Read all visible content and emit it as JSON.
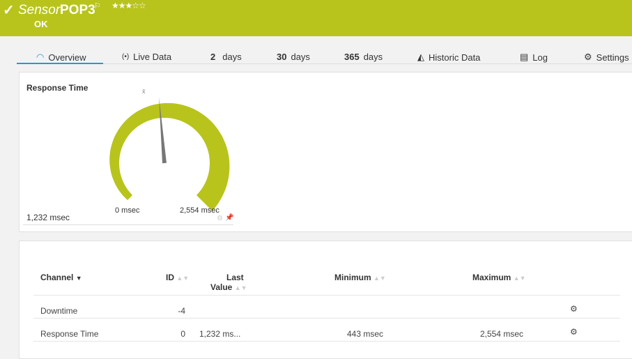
{
  "header": {
    "prefix": "Sensor",
    "name": "POP3",
    "status": "OK",
    "rating": 3,
    "rating_max": 5,
    "icon": "check-icon",
    "flag_icon": "flag-icon",
    "color": "#b8c41c"
  },
  "tabs": [
    {
      "label": "Overview",
      "icon": "gauge-icon",
      "active": true
    },
    {
      "label": "Live Data",
      "icon": "broadcast-icon"
    },
    {
      "num": "2",
      "label": "days"
    },
    {
      "num": "30",
      "label": "days"
    },
    {
      "num": "365",
      "label": "days"
    },
    {
      "label": "Historic Data",
      "icon": "area-chart-icon"
    },
    {
      "label": "Log",
      "icon": "log-icon"
    },
    {
      "label": "Settings",
      "icon": "gear-icon"
    }
  ],
  "gauge": {
    "title": "Response Time",
    "value_label": "1,232 msec",
    "min_label": "0 msec",
    "max_label": "2,554 msec",
    "value": 1232,
    "min": 0,
    "max": 2554,
    "avg_marker": "x̄",
    "color": "#b8c41c"
  },
  "table": {
    "headers": {
      "channel": "Channel",
      "id": "ID",
      "last_1": "Last",
      "last_2": "Value",
      "minimum": "Minimum",
      "maximum": "Maximum"
    },
    "rows": [
      {
        "channel": "Downtime",
        "id": "-4",
        "last": "",
        "minimum": "",
        "maximum": ""
      },
      {
        "channel": "Response Time",
        "id": "0",
        "last": "1,232 ms...",
        "minimum": "443 msec",
        "maximum": "2,554 msec"
      }
    ]
  }
}
